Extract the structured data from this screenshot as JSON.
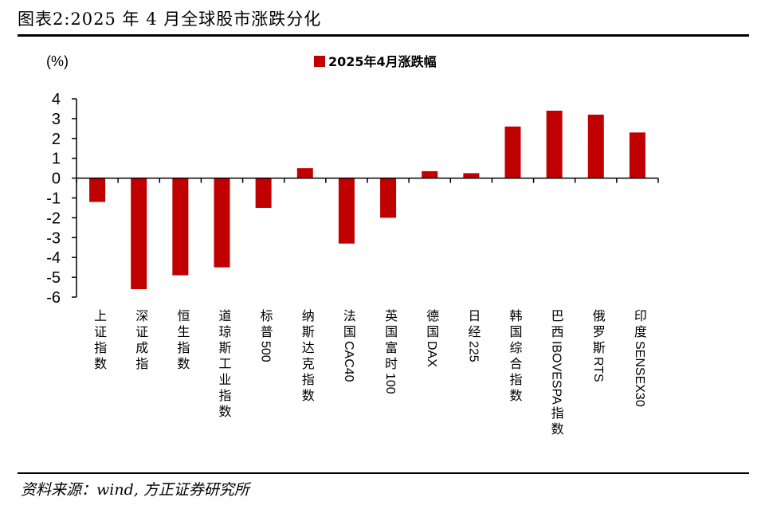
{
  "title": "图表2:2025 年 4 月全球股市涨跌分化",
  "source": "资料来源：wind, 方正证券研究所",
  "colors": {
    "bar": "#c00000",
    "axis": "#000000",
    "text": "#000000"
  },
  "chart_data": {
    "type": "bar",
    "unit_label": "(%)",
    "categories": [
      "上证指数",
      "深证成指",
      "恒生指数",
      "道琼斯工业指数",
      "标普500",
      "纳斯达克指数",
      "法国CAC40",
      "英国富时100",
      "德国DAX",
      "日经225",
      "韩国综合指数",
      "巴西IBOVESPA指数",
      "俄罗斯RTS",
      "印度SENSEX30"
    ],
    "series": [
      {
        "name": "2025年4月涨跌幅",
        "values": [
          -1.2,
          -5.6,
          -4.9,
          -4.5,
          -1.5,
          0.5,
          -3.3,
          -2.0,
          0.35,
          0.25,
          2.6,
          3.4,
          3.2,
          2.3
        ]
      }
    ],
    "yticks": [
      4,
      3,
      2,
      1,
      0,
      -1,
      -2,
      -3,
      -4,
      -5,
      -6
    ],
    "ylim": [
      -6,
      4
    ],
    "legend_position": "top",
    "grid": false
  }
}
